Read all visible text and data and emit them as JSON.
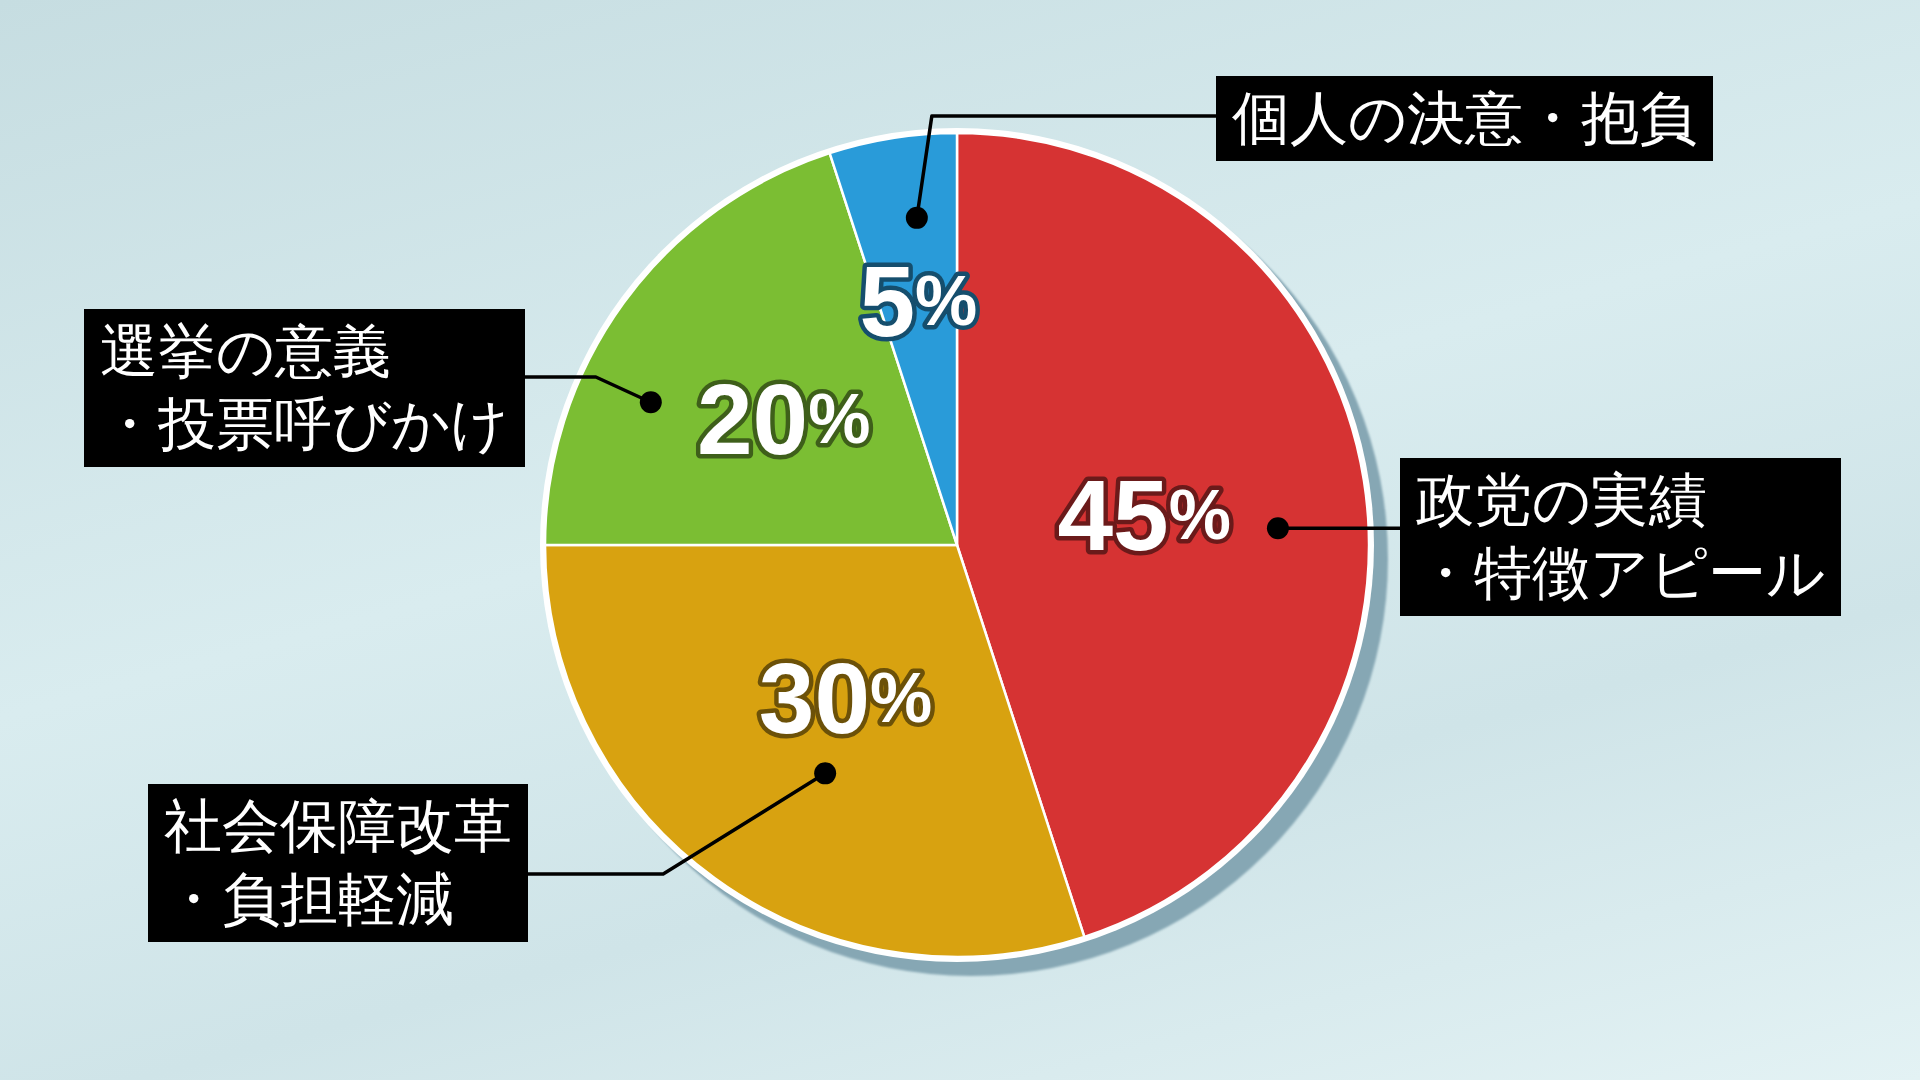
{
  "chart_data": {
    "type": "pie",
    "categories": [
      "政党の実績・特徴アピール",
      "社会保障改革・負担軽減",
      "選挙の意義・投票呼びかけ",
      "個人の決意・抱負"
    ],
    "values": [
      45,
      30,
      20,
      5
    ],
    "colors": [
      "#d63333",
      "#d8a210",
      "#7bbe33",
      "#299bd9"
    ],
    "value_labels": [
      "45%",
      "30%",
      "20%",
      "5%"
    ]
  }
}
